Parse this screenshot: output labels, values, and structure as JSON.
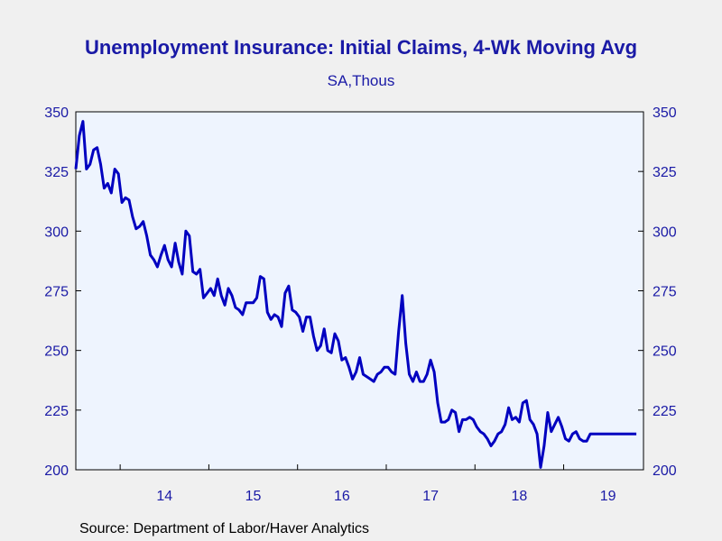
{
  "chart_data": {
    "type": "line",
    "title": "Unemployment Insurance: Initial Claims, 4-Wk Moving Avg",
    "subtitle": "SA,Thous",
    "source": "Source:  Department of Labor/Haver Analytics",
    "y_ticks": [
      200,
      225,
      250,
      275,
      300,
      325,
      350
    ],
    "ylim": [
      200,
      350
    ],
    "x_tick_labels": [
      "14",
      "15",
      "16",
      "17",
      "18",
      "19"
    ],
    "xlim": [
      2013.5,
      2019.9
    ],
    "series_color": "#0000c0",
    "plot_background": "#eef4fe",
    "series": [
      {
        "x": [
          2013.5,
          2013.54,
          2013.58,
          2013.62,
          2013.66,
          2013.7,
          2013.74,
          2013.78,
          2013.82,
          2013.86,
          2013.9,
          2013.94,
          2013.98,
          2014.02,
          2014.06,
          2014.1,
          2014.14,
          2014.18,
          2014.22,
          2014.26,
          2014.3,
          2014.34,
          2014.38,
          2014.42,
          2014.46,
          2014.5,
          2014.54,
          2014.58,
          2014.62,
          2014.66,
          2014.7,
          2014.74,
          2014.78,
          2014.82,
          2014.86,
          2014.9,
          2014.94,
          2014.98,
          2015.02,
          2015.06,
          2015.1,
          2015.14,
          2015.18,
          2015.22,
          2015.26,
          2015.3,
          2015.34,
          2015.38,
          2015.42,
          2015.46,
          2015.5,
          2015.54,
          2015.58,
          2015.62,
          2015.66,
          2015.7,
          2015.74,
          2015.78,
          2015.82,
          2015.86,
          2015.9,
          2015.94,
          2015.98,
          2016.02,
          2016.06,
          2016.1,
          2016.14,
          2016.18,
          2016.22,
          2016.26,
          2016.3,
          2016.34,
          2016.38,
          2016.42,
          2016.46,
          2016.5,
          2016.54,
          2016.58,
          2016.62,
          2016.66,
          2016.7,
          2016.74,
          2016.78,
          2016.82,
          2016.86,
          2016.9,
          2016.94,
          2016.98,
          2017.02,
          2017.06,
          2017.1,
          2017.14,
          2017.18,
          2017.22,
          2017.26,
          2017.3,
          2017.34,
          2017.38,
          2017.42,
          2017.46,
          2017.5,
          2017.54,
          2017.58,
          2017.62,
          2017.66,
          2017.7,
          2017.74,
          2017.78,
          2017.82,
          2017.86,
          2017.9,
          2017.94,
          2017.98,
          2018.02,
          2018.06,
          2018.1,
          2018.14,
          2018.18,
          2018.22,
          2018.26,
          2018.3,
          2018.34,
          2018.38,
          2018.42,
          2018.46,
          2018.5,
          2018.54,
          2018.58,
          2018.62,
          2018.66,
          2018.7,
          2018.74,
          2018.78,
          2018.82,
          2018.86,
          2018.9,
          2018.94,
          2018.98,
          2019.02,
          2019.06,
          2019.1,
          2019.14,
          2019.18,
          2019.22,
          2019.26,
          2019.3,
          2019.34,
          2019.38,
          2019.42,
          2019.46,
          2019.5,
          2019.54,
          2019.58,
          2019.62,
          2019.66,
          2019.7,
          2019.74,
          2019.78,
          2019.82
        ],
        "y": [
          326,
          340,
          346,
          326,
          328,
          334,
          335,
          328,
          318,
          320,
          316,
          326,
          324,
          312,
          314,
          313,
          306,
          301,
          302,
          304,
          298,
          290,
          288,
          285,
          290,
          294,
          288,
          285,
          295,
          287,
          282,
          300,
          298,
          283,
          282,
          284,
          272,
          274,
          276,
          273,
          280,
          273,
          269,
          276,
          273,
          268,
          267,
          265,
          270,
          270,
          270,
          272,
          281,
          280,
          266,
          263,
          265,
          264,
          260,
          274,
          277,
          267,
          266,
          264,
          258,
          264,
          264,
          256,
          250,
          252,
          259,
          250,
          249,
          257,
          254,
          246,
          247,
          243,
          238,
          241,
          247,
          240,
          239,
          238,
          237,
          240,
          241,
          243,
          243,
          241,
          240,
          258,
          273,
          253,
          240,
          237,
          241,
          237,
          237,
          240,
          246,
          241,
          228,
          220,
          220,
          221,
          225,
          224,
          216,
          221,
          221,
          222,
          221,
          218,
          216,
          215,
          213,
          210,
          212,
          215,
          216,
          219,
          226,
          221,
          222,
          220,
          228,
          229,
          221,
          219,
          215,
          201,
          210,
          224,
          216,
          219,
          222,
          218,
          213,
          212,
          215,
          216,
          213,
          212,
          212,
          215,
          215,
          215,
          215,
          215,
          215,
          215,
          215,
          215,
          215,
          215,
          215,
          215,
          215
        ]
      }
    ]
  }
}
